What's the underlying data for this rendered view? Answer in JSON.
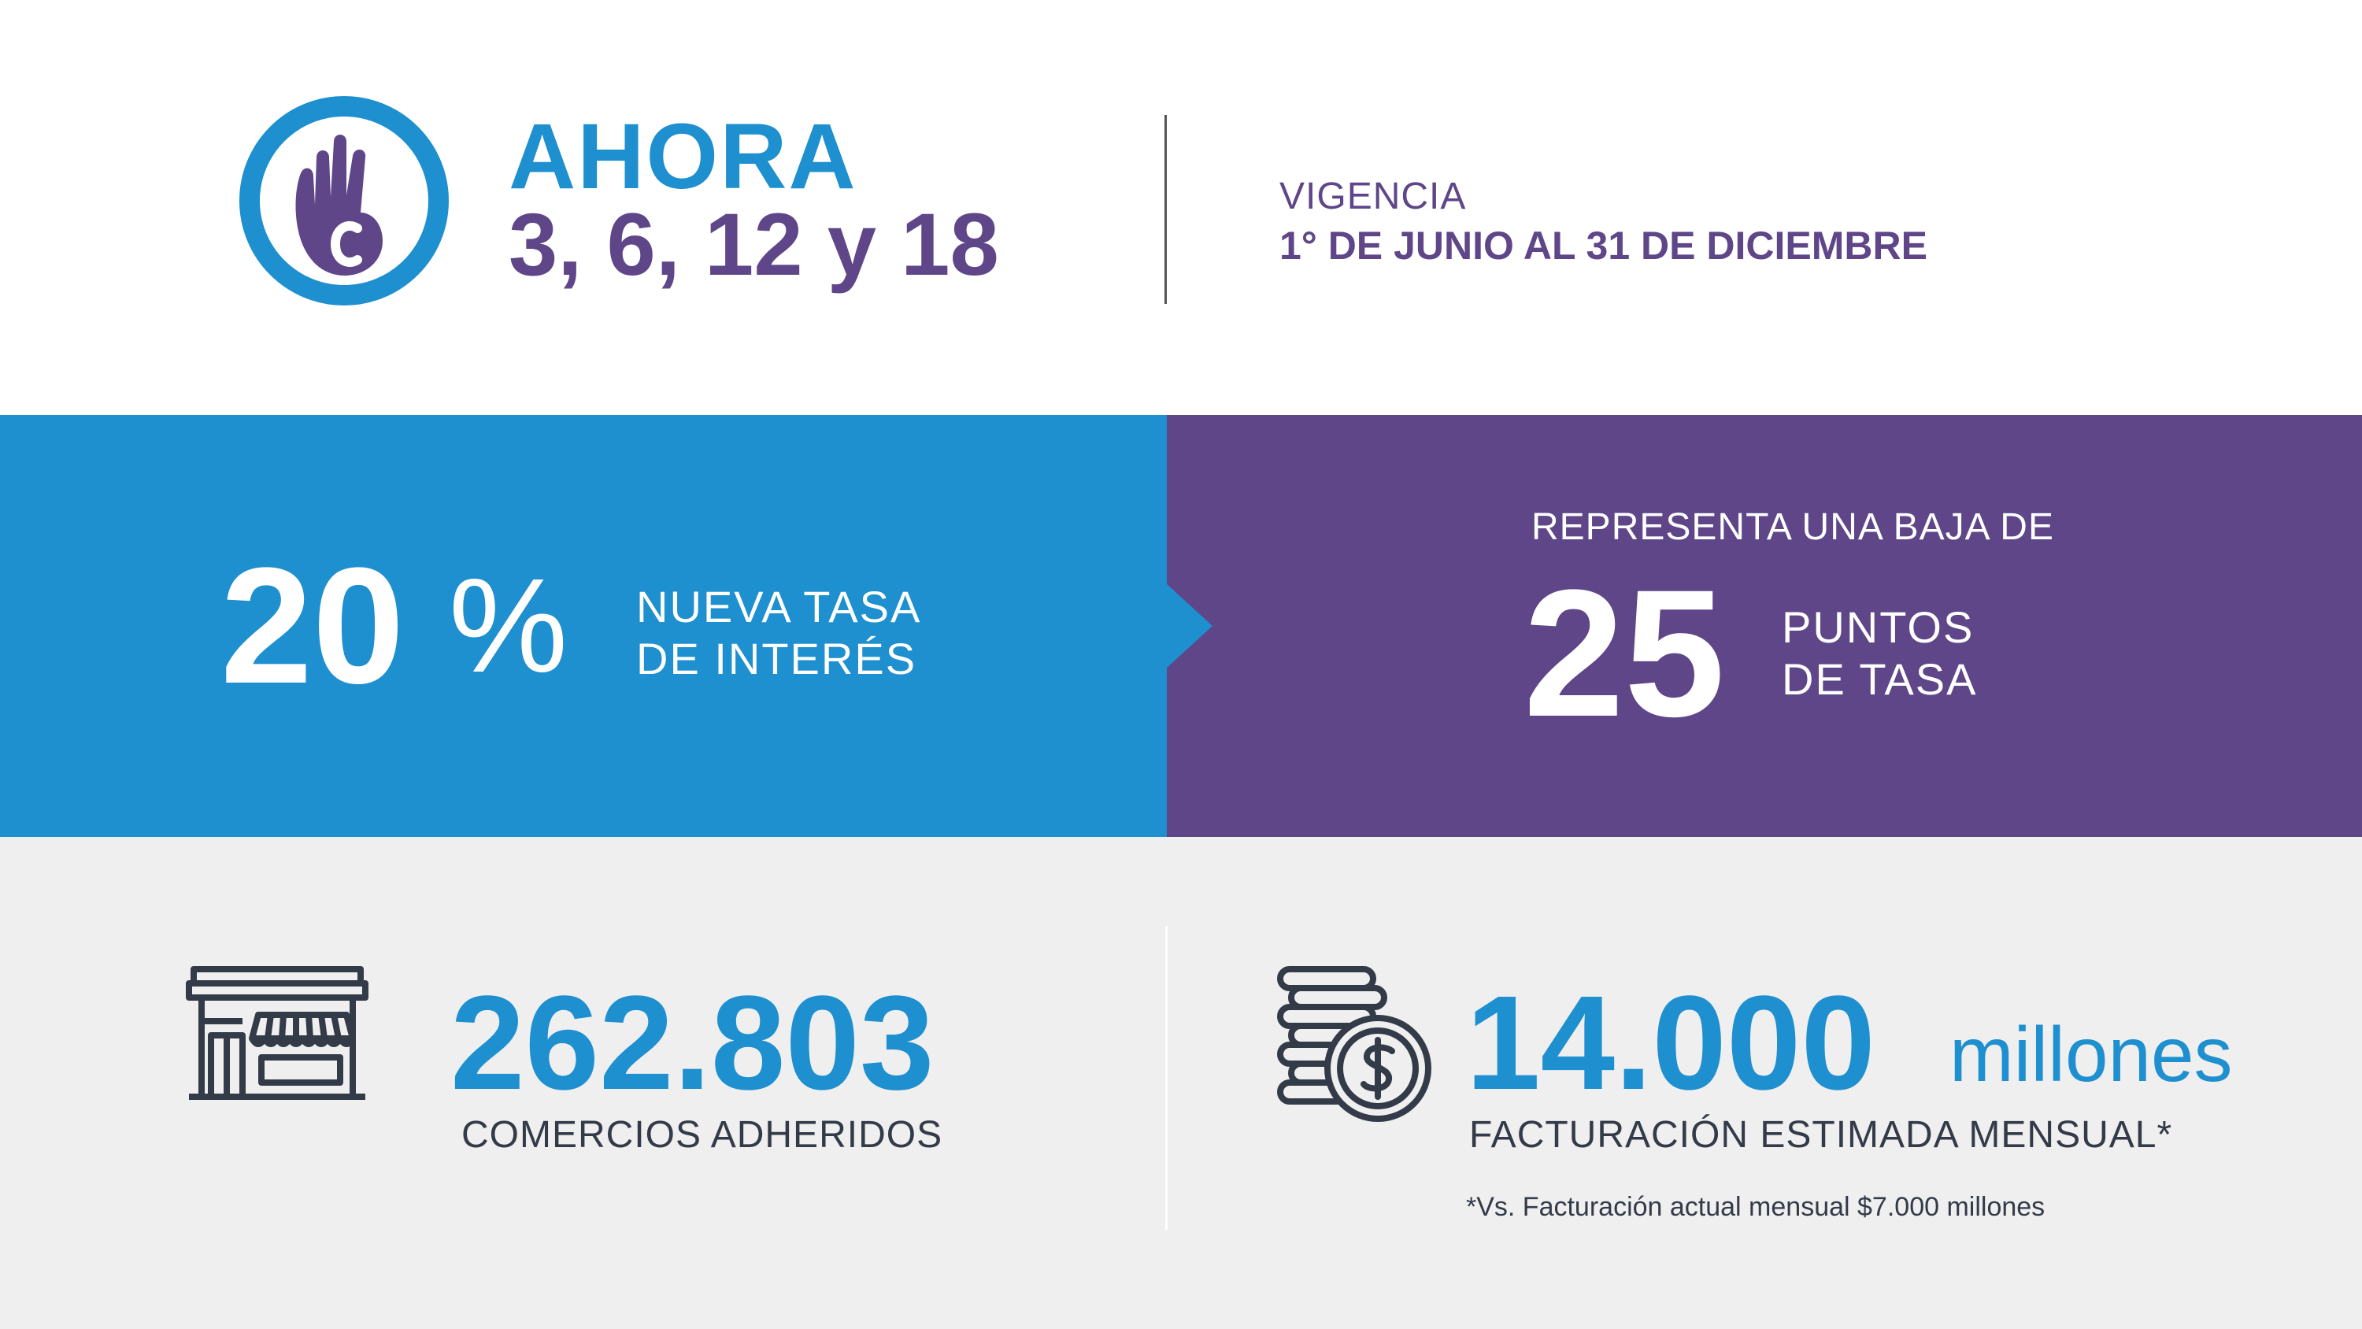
{
  "colors": {
    "blue": "#1e8fcf",
    "purple": "#5e4688",
    "light_gray": "#efefef",
    "text_dark": "#333a48"
  },
  "header": {
    "logo_icon": "hand-c-logo-icon",
    "title": "AHORA",
    "subtitle": "3, 6, 12 y 18",
    "vigencia_label": "VIGENCIA",
    "vigencia_dates": "1° DE JUNIO AL 31 DE DICIEMBRE"
  },
  "rate": {
    "number": "20",
    "percent": "%",
    "label_line1": "NUEVA TASA",
    "label_line2": "DE INTERÉS"
  },
  "reduction": {
    "intro": "REPRESENTA UNA BAJA DE",
    "number": "25",
    "label_line1": "PUNTOS",
    "label_line2": "DE TASA"
  },
  "commerce": {
    "icon": "storefront-icon",
    "number": "262.803",
    "label": "COMERCIOS ADHERIDOS"
  },
  "billing": {
    "icon": "coins-dollar-icon",
    "number": "14.000",
    "unit": "millones",
    "label": "FACTURACIÓN ESTIMADA MENSUAL*",
    "note": "*Vs. Facturación actual mensual $7.000 millones"
  }
}
